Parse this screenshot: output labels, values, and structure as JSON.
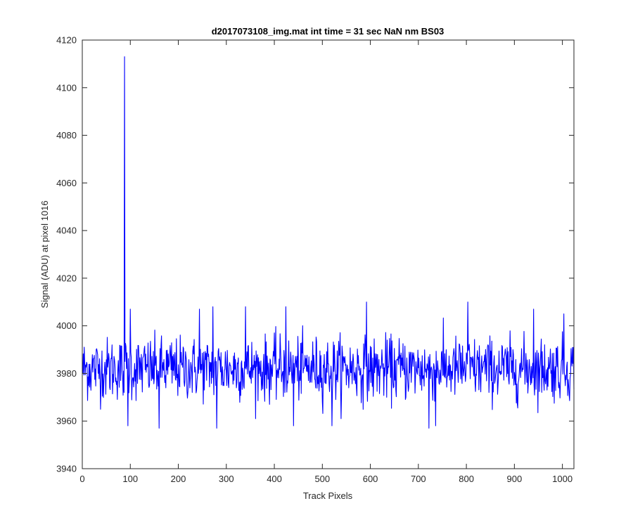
{
  "chart_data": {
    "type": "line",
    "title": "d2017073108_img.mat int time = 31 sec  NaN nm BS03",
    "xlabel": "Track Pixels",
    "ylabel": "Signal (ADU) at pixel 1016",
    "xlim": [
      0,
      1024
    ],
    "ylim": [
      3940,
      4120
    ],
    "xticks": [
      "0",
      "100",
      "200",
      "300",
      "400",
      "500",
      "600",
      "700",
      "800",
      "900",
      "1000"
    ],
    "yticks": [
      "3940",
      "3960",
      "3980",
      "4000",
      "4020",
      "4040",
      "4060",
      "4080",
      "4100",
      "4120"
    ],
    "grid": false,
    "series_color": "#0000ff",
    "series": [
      {
        "x_start": 1,
        "x_step": 1,
        "baseline": 3982,
        "spikes": [
          [
            88,
            4113
          ],
          [
            87,
            3972
          ],
          [
            89,
            3985
          ],
          [
            95,
            3958
          ],
          [
            100,
            4007
          ],
          [
            160,
            3957
          ],
          [
            244,
            4007
          ],
          [
            272,
            4008
          ],
          [
            280,
            3957
          ],
          [
            340,
            4008
          ],
          [
            424,
            4008
          ],
          [
            440,
            3958
          ],
          [
            520,
            3958
          ],
          [
            592,
            4010
          ],
          [
            722,
            3957
          ],
          [
            736,
            3958
          ],
          [
            803,
            4010
          ],
          [
            940,
            4007
          ],
          [
            1003,
            4005
          ]
        ]
      }
    ]
  }
}
